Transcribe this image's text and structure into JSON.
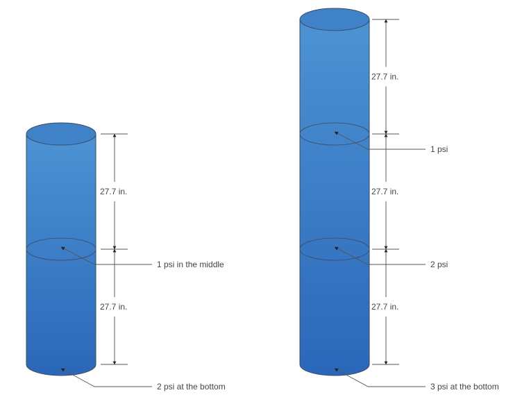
{
  "colors": {
    "water_top": "#4d93d3",
    "water_bottom": "#2b67b9",
    "outline": "#3a4a60",
    "line": "#555555"
  },
  "left_column": {
    "segments": [
      "27.7 in.",
      "27.7 in."
    ],
    "callouts": [
      "1 psi in the middle",
      "2 psi at the bottom"
    ]
  },
  "right_column": {
    "segments": [
      "27.7 in.",
      "27.7 in.",
      "27.7 in."
    ],
    "callouts": [
      "1 psi",
      "2 psi",
      "3 psi at the bottom"
    ]
  }
}
